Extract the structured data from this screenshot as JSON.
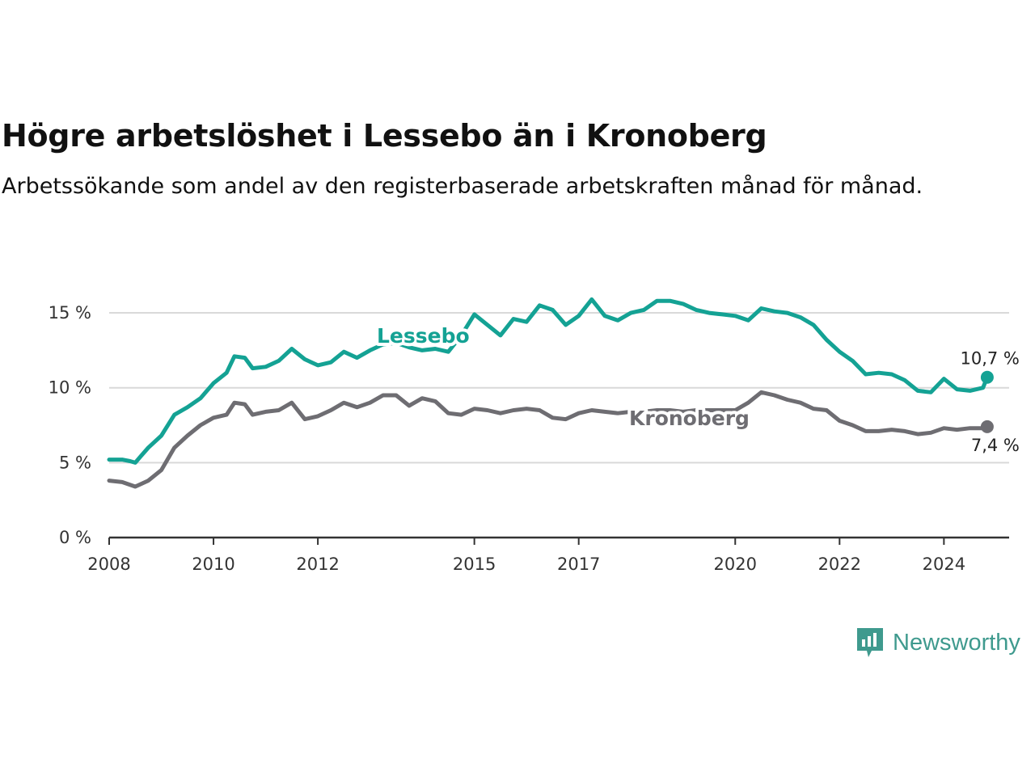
{
  "title": "Högre arbetslöshet i Lessebo än i Kronoberg",
  "subtitle": "Arbetssökande som andel av den registerbaserade arbetskraften månad för månad.",
  "brand": {
    "name": "Newsworthy",
    "icon": "newsworthy-logo-icon",
    "color": "#3f9a8e"
  },
  "chart_data": {
    "type": "line",
    "x_axis": {
      "range": [
        2008,
        2025.25
      ],
      "ticks": [
        2008,
        2010,
        2012,
        2015,
        2017,
        2020,
        2022,
        2024
      ]
    },
    "y_axis": {
      "range": [
        0,
        17
      ],
      "ticks": [
        0,
        5,
        10,
        15
      ],
      "tick_labels": [
        "0 %",
        "5 %",
        "10 %",
        "15 %"
      ]
    },
    "grid": true,
    "series": [
      {
        "name": "Lessebo",
        "color": "#14a294",
        "end_label": "10,7 %",
        "points": [
          [
            2008.0,
            5.2
          ],
          [
            2008.25,
            5.2
          ],
          [
            2008.4,
            5.1
          ],
          [
            2008.5,
            5.0
          ],
          [
            2008.6,
            5.4
          ],
          [
            2008.75,
            6.0
          ],
          [
            2009.0,
            6.8
          ],
          [
            2009.25,
            8.2
          ],
          [
            2009.5,
            8.7
          ],
          [
            2009.75,
            9.3
          ],
          [
            2010.0,
            10.3
          ],
          [
            2010.25,
            11.0
          ],
          [
            2010.4,
            12.1
          ],
          [
            2010.6,
            12.0
          ],
          [
            2010.75,
            11.3
          ],
          [
            2011.0,
            11.4
          ],
          [
            2011.25,
            11.8
          ],
          [
            2011.5,
            12.6
          ],
          [
            2011.75,
            11.9
          ],
          [
            2012.0,
            11.5
          ],
          [
            2012.25,
            11.7
          ],
          [
            2012.5,
            12.4
          ],
          [
            2012.75,
            12.0
          ],
          [
            2013.0,
            12.5
          ],
          [
            2013.25,
            12.9
          ],
          [
            2013.5,
            13.0
          ],
          [
            2013.75,
            12.7
          ],
          [
            2014.0,
            12.5
          ],
          [
            2014.25,
            12.6
          ],
          [
            2014.5,
            12.4
          ],
          [
            2014.75,
            13.5
          ],
          [
            2015.0,
            14.9
          ],
          [
            2015.25,
            14.2
          ],
          [
            2015.5,
            13.5
          ],
          [
            2015.75,
            14.6
          ],
          [
            2016.0,
            14.4
          ],
          [
            2016.25,
            15.5
          ],
          [
            2016.5,
            15.2
          ],
          [
            2016.75,
            14.2
          ],
          [
            2017.0,
            14.8
          ],
          [
            2017.25,
            15.9
          ],
          [
            2017.5,
            14.8
          ],
          [
            2017.75,
            14.5
          ],
          [
            2018.0,
            15.0
          ],
          [
            2018.25,
            15.2
          ],
          [
            2018.5,
            15.8
          ],
          [
            2018.75,
            15.8
          ],
          [
            2019.0,
            15.6
          ],
          [
            2019.25,
            15.2
          ],
          [
            2019.5,
            15.0
          ],
          [
            2019.75,
            14.9
          ],
          [
            2020.0,
            14.8
          ],
          [
            2020.25,
            14.5
          ],
          [
            2020.5,
            15.3
          ],
          [
            2020.75,
            15.1
          ],
          [
            2021.0,
            15.0
          ],
          [
            2021.25,
            14.7
          ],
          [
            2021.5,
            14.2
          ],
          [
            2021.75,
            13.2
          ],
          [
            2022.0,
            12.4
          ],
          [
            2022.25,
            11.8
          ],
          [
            2022.5,
            10.9
          ],
          [
            2022.75,
            11.0
          ],
          [
            2023.0,
            10.9
          ],
          [
            2023.25,
            10.5
          ],
          [
            2023.5,
            9.8
          ],
          [
            2023.75,
            9.7
          ],
          [
            2024.0,
            10.6
          ],
          [
            2024.25,
            9.9
          ],
          [
            2024.5,
            9.8
          ],
          [
            2024.75,
            10.0
          ],
          [
            2024.83,
            10.7
          ]
        ]
      },
      {
        "name": "Kronoberg",
        "color": "#6e6d72",
        "end_label": "7,4 %",
        "points": [
          [
            2008.0,
            3.8
          ],
          [
            2008.25,
            3.7
          ],
          [
            2008.5,
            3.4
          ],
          [
            2008.75,
            3.8
          ],
          [
            2009.0,
            4.5
          ],
          [
            2009.25,
            6.0
          ],
          [
            2009.5,
            6.8
          ],
          [
            2009.75,
            7.5
          ],
          [
            2010.0,
            8.0
          ],
          [
            2010.25,
            8.2
          ],
          [
            2010.4,
            9.0
          ],
          [
            2010.6,
            8.9
          ],
          [
            2010.75,
            8.2
          ],
          [
            2011.0,
            8.4
          ],
          [
            2011.25,
            8.5
          ],
          [
            2011.5,
            9.0
          ],
          [
            2011.75,
            7.9
          ],
          [
            2012.0,
            8.1
          ],
          [
            2012.25,
            8.5
          ],
          [
            2012.5,
            9.0
          ],
          [
            2012.75,
            8.7
          ],
          [
            2013.0,
            9.0
          ],
          [
            2013.25,
            9.5
          ],
          [
            2013.5,
            9.5
          ],
          [
            2013.75,
            8.8
          ],
          [
            2014.0,
            9.3
          ],
          [
            2014.25,
            9.1
          ],
          [
            2014.5,
            8.3
          ],
          [
            2014.75,
            8.2
          ],
          [
            2015.0,
            8.6
          ],
          [
            2015.25,
            8.5
          ],
          [
            2015.5,
            8.3
          ],
          [
            2015.75,
            8.5
          ],
          [
            2016.0,
            8.6
          ],
          [
            2016.25,
            8.5
          ],
          [
            2016.5,
            8.0
          ],
          [
            2016.75,
            7.9
          ],
          [
            2017.0,
            8.3
          ],
          [
            2017.25,
            8.5
          ],
          [
            2017.5,
            8.4
          ],
          [
            2017.75,
            8.3
          ],
          [
            2018.0,
            8.4
          ],
          [
            2018.25,
            8.4
          ],
          [
            2018.5,
            8.5
          ],
          [
            2018.75,
            8.5
          ],
          [
            2019.0,
            8.4
          ],
          [
            2019.25,
            8.5
          ],
          [
            2019.5,
            8.5
          ],
          [
            2019.75,
            8.5
          ],
          [
            2020.0,
            8.5
          ],
          [
            2020.25,
            9.0
          ],
          [
            2020.5,
            9.7
          ],
          [
            2020.75,
            9.5
          ],
          [
            2021.0,
            9.2
          ],
          [
            2021.25,
            9.0
          ],
          [
            2021.5,
            8.6
          ],
          [
            2021.75,
            8.5
          ],
          [
            2022.0,
            7.8
          ],
          [
            2022.25,
            7.5
          ],
          [
            2022.5,
            7.1
          ],
          [
            2022.75,
            7.1
          ],
          [
            2023.0,
            7.2
          ],
          [
            2023.25,
            7.1
          ],
          [
            2023.5,
            6.9
          ],
          [
            2023.75,
            7.0
          ],
          [
            2024.0,
            7.3
          ],
          [
            2024.25,
            7.2
          ],
          [
            2024.5,
            7.3
          ],
          [
            2024.75,
            7.3
          ],
          [
            2024.83,
            7.4
          ]
        ]
      }
    ]
  }
}
